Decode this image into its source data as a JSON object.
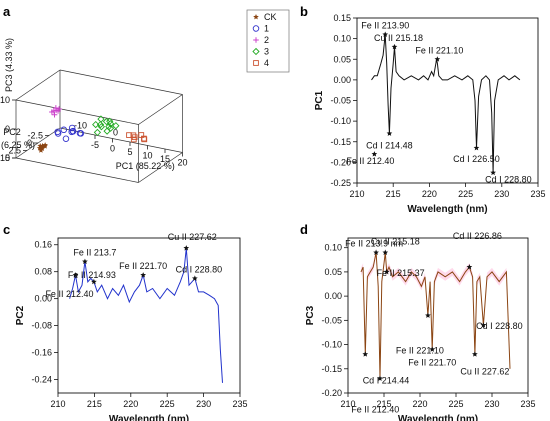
{
  "chart_data": [
    {
      "panel": "a",
      "type": "scatter",
      "xlabel": "PC1 (85.22 %)",
      "ylabel": "PC2",
      "ylabel2": "(6.25 %)",
      "zlabel": "PC3 (4.33 %)",
      "x_ticks": [
        "-5",
        "0",
        "5",
        "10",
        "15",
        "20"
      ],
      "y_ticks": [
        "-2.5",
        "0",
        "2.5",
        "5"
      ],
      "z_ticks": [
        "-10",
        "0",
        "10"
      ],
      "x_minor_labels": [
        "-10",
        "0"
      ],
      "xlim": [
        -15,
        20
      ],
      "ylim": [
        -5,
        5
      ],
      "zlim": [
        -10,
        10
      ],
      "legend_position": "top-right",
      "series": [
        {
          "name": "CK",
          "color": "#8b4513",
          "marker": "star",
          "points": [
            [
              -12,
              2,
              -9
            ],
            [
              -11.5,
              1.8,
              -9.2
            ],
            [
              -11.8,
              1.5,
              -8.8
            ],
            [
              -12.2,
              1.2,
              -9.1
            ],
            [
              -11,
              1.6,
              -8.5
            ],
            [
              -11.4,
              2.2,
              -9.4
            ],
            [
              -12.6,
              1.4,
              -9
            ],
            [
              -11.7,
              1,
              -8.9
            ]
          ]
        },
        {
          "name": "1",
          "color": "#3333cc",
          "marker": "circle",
          "points": [
            [
              -8,
              1,
              -4
            ],
            [
              -7,
              0.5,
              -3
            ],
            [
              -5,
              0,
              -3.5
            ],
            [
              -6,
              -0.5,
              -4.5
            ],
            [
              -4,
              0.8,
              -2.5
            ],
            [
              -3,
              -0.2,
              -4
            ],
            [
              -7.5,
              1.5,
              -2.8
            ],
            [
              -5.5,
              1.2,
              -5
            ],
            [
              -2.5,
              0.4,
              -3.2
            ],
            [
              -6.5,
              -1,
              -3.8
            ]
          ]
        },
        {
          "name": "2",
          "color": "#cc44cc",
          "marker": "plus",
          "points": [
            [
              -6,
              4,
              7
            ],
            [
              -5.5,
              3.5,
              8
            ],
            [
              -5,
              4.2,
              6.5
            ],
            [
              -4.5,
              3.8,
              7.5
            ],
            [
              -5.8,
              3.2,
              6.8
            ],
            [
              -4.8,
              4.5,
              8.2
            ],
            [
              -5.2,
              3,
              7.2
            ]
          ]
        },
        {
          "name": "3",
          "color": "#22aa22",
          "marker": "diamond",
          "points": [
            [
              4,
              2,
              3
            ],
            [
              5,
              1.5,
              2
            ],
            [
              6,
              2.5,
              4
            ],
            [
              7,
              1,
              3
            ],
            [
              5.5,
              2.8,
              1.5
            ],
            [
              8,
              1.8,
              2.5
            ],
            [
              6.5,
              0.8,
              3.5
            ],
            [
              4.5,
              1.2,
              4.2
            ],
            [
              7.5,
              2.2,
              1.8
            ],
            [
              9,
              1.4,
              3.2
            ],
            [
              5.2,
              0.5,
              2.8
            ],
            [
              8.5,
              2.6,
              4
            ]
          ]
        },
        {
          "name": "4",
          "color": "#cc5533",
          "marker": "square",
          "points": [
            [
              11,
              0,
              -1
            ],
            [
              12,
              -0.5,
              -2
            ],
            [
              13,
              0.5,
              -1.5
            ],
            [
              14,
              -1,
              -2.5
            ],
            [
              12.5,
              0.2,
              -0.5
            ],
            [
              15,
              -0.3,
              -1.8
            ],
            [
              13.5,
              -0.8,
              -1.2
            ]
          ]
        }
      ]
    },
    {
      "panel": "b",
      "type": "line",
      "xlabel": "Wavelength (nm)",
      "ylabel": "PC1",
      "xlim": [
        210,
        235
      ],
      "ylim": [
        -0.25,
        0.15
      ],
      "x_ticks": [
        "210",
        "215",
        "220",
        "225",
        "230",
        "235"
      ],
      "y_ticks": [
        "0.15",
        "0.10",
        "0.05",
        "0.00",
        "-0.05",
        "-0.10",
        "-0.15",
        "-0.20",
        "-0.25"
      ],
      "color": "#111111",
      "series": [
        {
          "x": [
            212,
            212.4,
            212.8,
            213.3,
            213.6,
            213.9,
            214.1,
            214.3,
            214.48,
            214.7,
            215.0,
            215.18,
            215.4,
            215.8,
            216.5,
            217.5,
            218.5,
            219.2,
            219.8,
            220.3,
            220.6,
            221.0,
            221.1,
            221.3,
            221.8,
            222.5,
            223.5,
            224.5,
            225.3,
            226.0,
            226.3,
            226.5,
            226.8,
            227.2,
            227.8,
            228.3,
            228.6,
            228.8,
            229.0,
            229.5,
            230.3,
            231.0,
            231.8,
            232.5
          ],
          "y": [
            0.0,
            0.01,
            0.01,
            0.04,
            0.06,
            0.11,
            0.04,
            -0.06,
            -0.13,
            -0.02,
            0.04,
            0.08,
            0.02,
            0.01,
            0.0,
            0.01,
            0.0,
            0.01,
            0.0,
            0.02,
            0.01,
            0.05,
            0.04,
            0.01,
            0.0,
            0.0,
            0.01,
            0.0,
            0.01,
            0.0,
            -0.05,
            -0.165,
            -0.04,
            0.0,
            0.01,
            0.0,
            -0.08,
            -0.225,
            -0.05,
            0.0,
            0.01,
            0.0,
            0.01,
            0.0
          ]
        }
      ],
      "annotations": [
        {
          "text": "Fe II 213.90",
          "x": 213.9,
          "y": 0.11
        },
        {
          "text": "Cu II 215.18",
          "x": 215.18,
          "y": 0.08
        },
        {
          "text": "Fe II 221.10",
          "x": 221.1,
          "y": 0.05
        },
        {
          "text": "Cd I 214.48",
          "x": 214.48,
          "y": -0.13
        },
        {
          "text": "Fe II 212.40",
          "x": 212.4,
          "y": -0.18
        },
        {
          "text": "Cd I 226.50",
          "x": 226.5,
          "y": -0.165
        },
        {
          "text": "Cd I 228.80",
          "x": 228.8,
          "y": -0.225
        }
      ]
    },
    {
      "panel": "c",
      "type": "line",
      "xlabel": "Wavelength (nm)",
      "ylabel": "PC2",
      "xlim": [
        210,
        235
      ],
      "ylim": [
        -0.28,
        0.18
      ],
      "x_ticks": [
        "210",
        "215",
        "220",
        "225",
        "230",
        "235"
      ],
      "y_ticks": [
        "0.16",
        "0.08",
        "0.00",
        "-0.08",
        "-0.16",
        "-0.24"
      ],
      "color": "#2233cc",
      "series": [
        {
          "x": [
            211.6,
            212.0,
            212.4,
            212.8,
            213.3,
            213.7,
            214.1,
            214.5,
            214.93,
            215.4,
            216.0,
            216.8,
            217.5,
            218.3,
            219.0,
            219.8,
            220.5,
            221.2,
            221.7,
            222.2,
            223.0,
            224.0,
            225.0,
            226.0,
            226.8,
            227.3,
            227.62,
            228.0,
            228.4,
            228.8,
            229.3,
            230.0,
            230.8,
            231.5,
            232.0,
            232.3,
            232.6
          ],
          "y": [
            0.0,
            0.03,
            0.07,
            0.02,
            0.04,
            0.11,
            0.05,
            0.06,
            0.05,
            0.02,
            0.04,
            0.0,
            0.03,
            0.01,
            0.04,
            -0.01,
            0.02,
            0.04,
            0.07,
            0.02,
            0.03,
            0.0,
            0.03,
            0.01,
            0.05,
            0.08,
            0.15,
            0.04,
            0.05,
            0.06,
            0.02,
            0.02,
            0.01,
            0.0,
            -0.02,
            -0.15,
            -0.25
          ]
        }
      ],
      "annotations": [
        {
          "text": "Fe II 213.7",
          "x": 213.7,
          "y": 0.11
        },
        {
          "text": "Fe II 214.93",
          "x": 214.93,
          "y": 0.05
        },
        {
          "text": "Fe II 221.70",
          "x": 221.7,
          "y": 0.07
        },
        {
          "text": "Cu II 227.62",
          "x": 227.62,
          "y": 0.15
        },
        {
          "text": "Cd I 228.80",
          "x": 228.8,
          "y": 0.06
        },
        {
          "text": "Fe II 212.40",
          "x": 212.4,
          "y": 0.07
        }
      ]
    },
    {
      "panel": "d",
      "type": "line",
      "xlabel": "Wavelength (nm)",
      "ylabel": "PC3",
      "xlim": [
        210,
        235
      ],
      "ylim": [
        -0.2,
        0.12
      ],
      "x_ticks": [
        "210",
        "215",
        "220",
        "225",
        "230",
        "235"
      ],
      "y_ticks": [
        "0.10",
        "0.05",
        "0.00",
        "-0.05",
        "-0.10",
        "-0.15",
        "-0.20"
      ],
      "color": "#8b4513",
      "band_color": "#ffc0dd",
      "series": [
        {
          "x": [
            211.8,
            212.1,
            212.4,
            212.7,
            213.1,
            213.5,
            213.9,
            214.2,
            214.44,
            214.7,
            215.18,
            215.37,
            215.7,
            216.2,
            217.0,
            218.0,
            218.8,
            219.5,
            220.2,
            220.7,
            221.1,
            221.4,
            221.7,
            222.0,
            222.5,
            223.5,
            224.5,
            225.5,
            226.3,
            226.86,
            227.3,
            227.62,
            227.9,
            228.3,
            228.8,
            229.3,
            230.0,
            231.0,
            232.0,
            232.5
          ],
          "y": [
            0.05,
            0.06,
            -0.12,
            0.04,
            0.05,
            0.06,
            0.09,
            0.02,
            -0.17,
            0.03,
            0.09,
            0.05,
            0.06,
            0.04,
            0.05,
            0.03,
            0.05,
            0.04,
            0.02,
            0.04,
            -0.04,
            0.03,
            -0.11,
            0.03,
            0.05,
            0.04,
            0.05,
            0.03,
            0.05,
            0.06,
            0.04,
            -0.12,
            0.03,
            0.04,
            -0.06,
            0.04,
            0.05,
            0.03,
            0.05,
            -0.15
          ]
        }
      ],
      "annotations": [
        {
          "text": "Fe II 213.9 nm",
          "x": 213.9,
          "y": 0.09
        },
        {
          "text": "Cu II 215.18",
          "x": 215.18,
          "y": 0.09
        },
        {
          "text": "Fe II 215.37",
          "x": 215.37,
          "y": 0.05
        },
        {
          "text": "Cd II 226.86",
          "x": 226.86,
          "y": 0.06
        },
        {
          "text": "Fe II 221.10",
          "x": 221.1,
          "y": -0.04
        },
        {
          "text": "Fe II 221.70",
          "x": 221.7,
          "y": -0.11
        },
        {
          "text": "Cd I 228.80",
          "x": 228.8,
          "y": -0.06
        },
        {
          "text": "Cu II 227.62",
          "x": 227.62,
          "y": -0.12
        },
        {
          "text": "Cd I 214.44",
          "x": 214.44,
          "y": -0.17
        },
        {
          "text": "Fe II 212.40",
          "x": 212.4,
          "y": -0.12
        }
      ]
    }
  ]
}
